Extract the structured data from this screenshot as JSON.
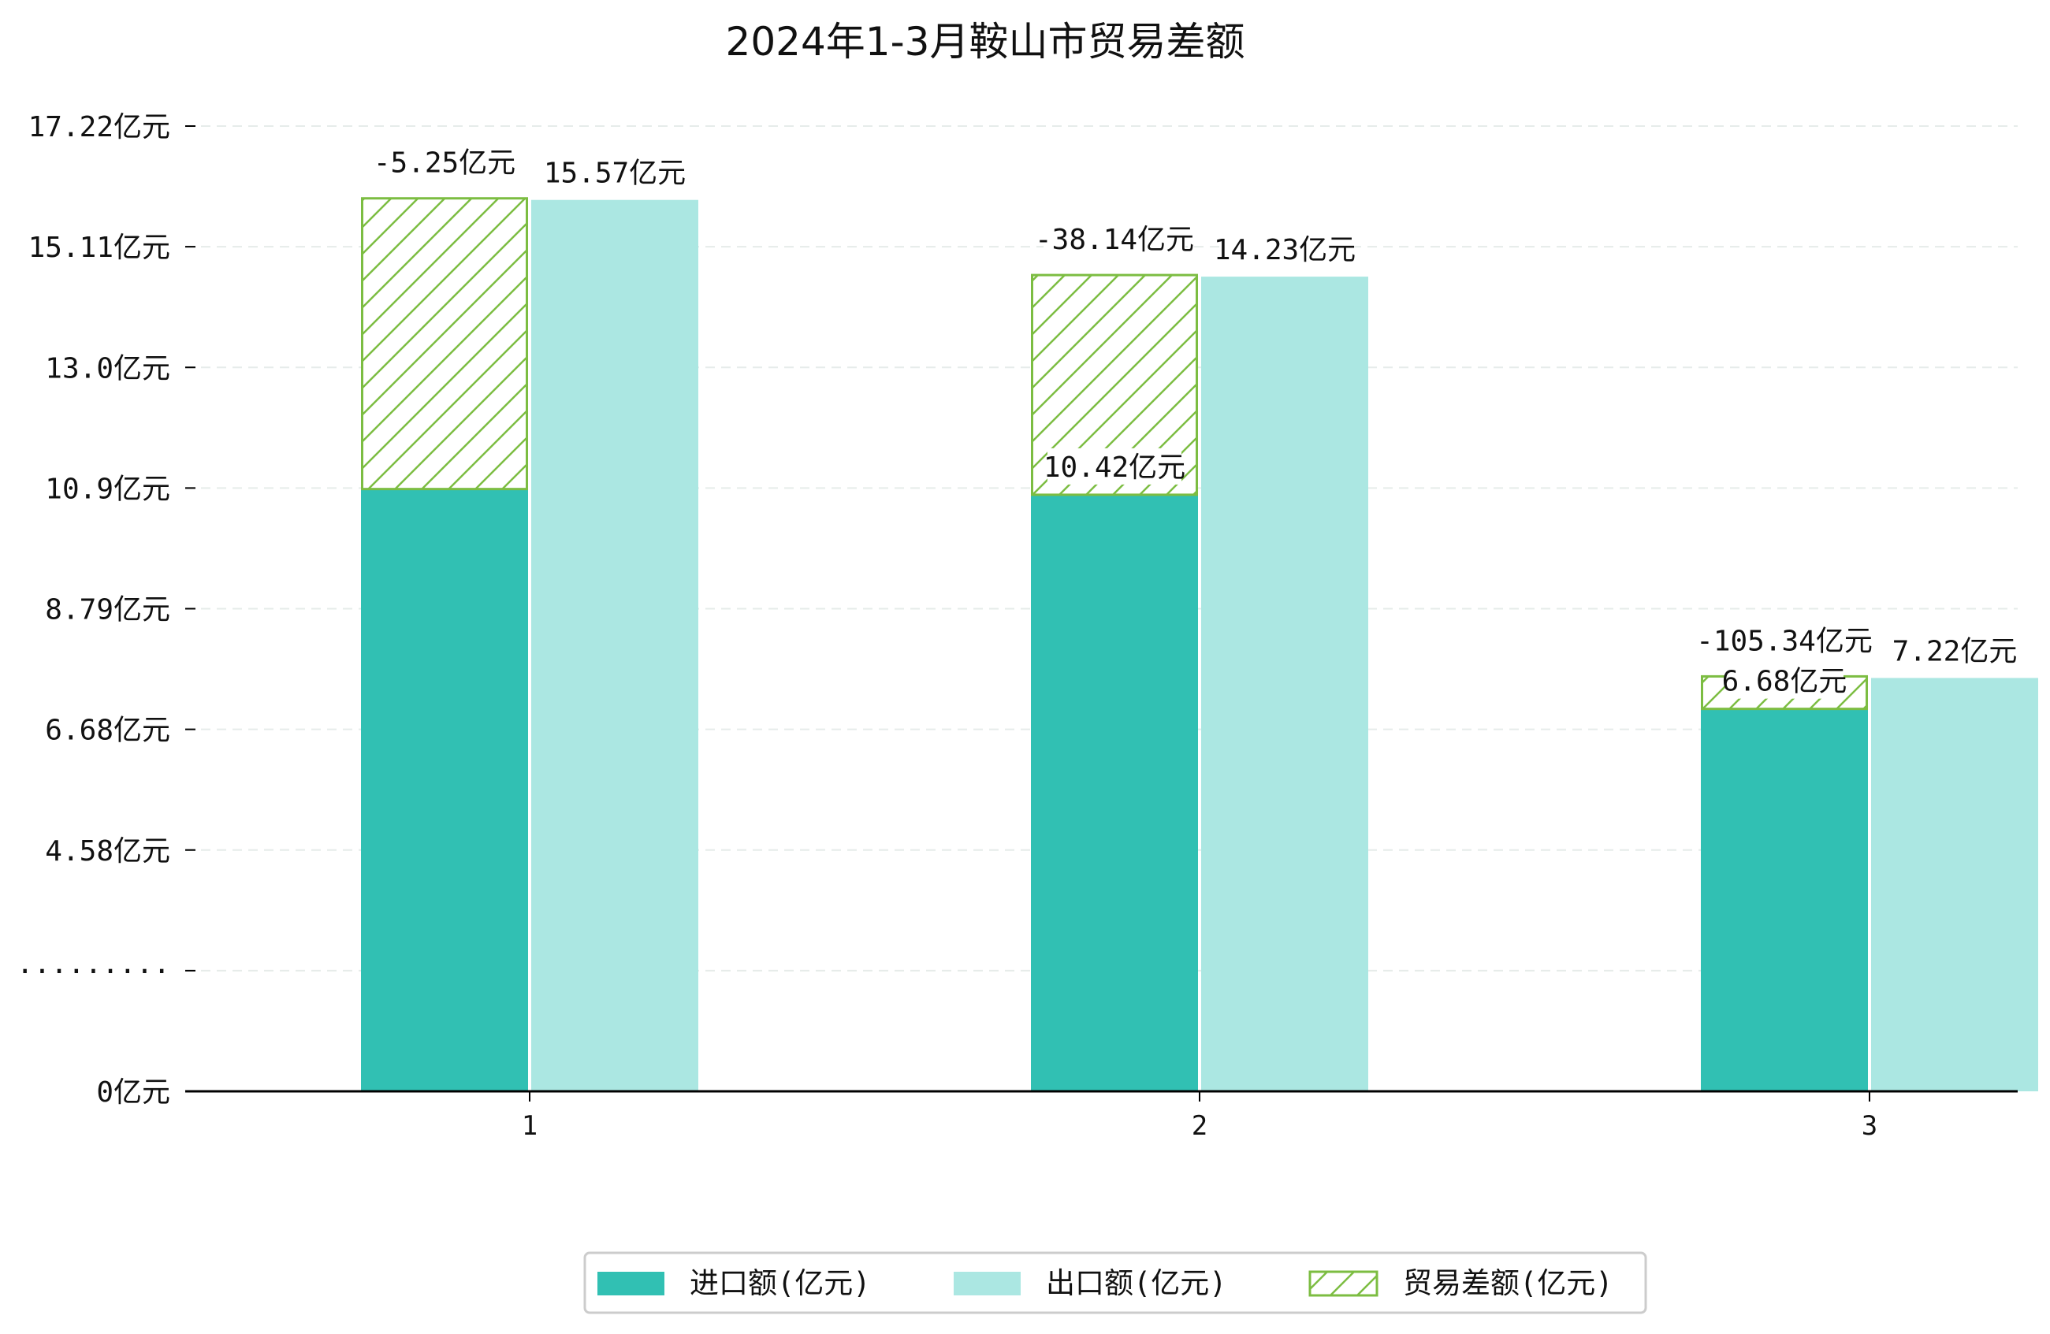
{
  "chart_data": {
    "type": "bar",
    "title": "2024年1-3月鞍山市贸易差额",
    "categories": [
      "1",
      "2",
      "3"
    ],
    "series": [
      {
        "name": "进口额(亿元)",
        "values": [
          10.52,
          10.42,
          6.68
        ],
        "labels": [
          "",
          "10.42亿元",
          "6.68亿元"
        ],
        "color": "#31c0b3"
      },
      {
        "name": "出口额(亿元)",
        "values": [
          15.57,
          14.23,
          7.22
        ],
        "labels": [
          "15.57亿元",
          "14.23亿元",
          "7.22亿元"
        ],
        "color": "#abe7e2"
      },
      {
        "name": "贸易差额(亿元)",
        "values": [
          -5.25,
          -38.14,
          -105.34
        ],
        "labels": [
          "-5.25亿元",
          "-38.14亿元",
          "-105.34亿元"
        ],
        "color": "#7cbd42"
      }
    ],
    "y_ticks": [
      "0亿元",
      "·········",
      "4.58亿元",
      "6.68亿元",
      "8.79亿元",
      "10.9亿元",
      "13.0亿元",
      "15.11亿元",
      "17.22亿元"
    ],
    "grid": true,
    "legend_position": "bottom-center"
  }
}
